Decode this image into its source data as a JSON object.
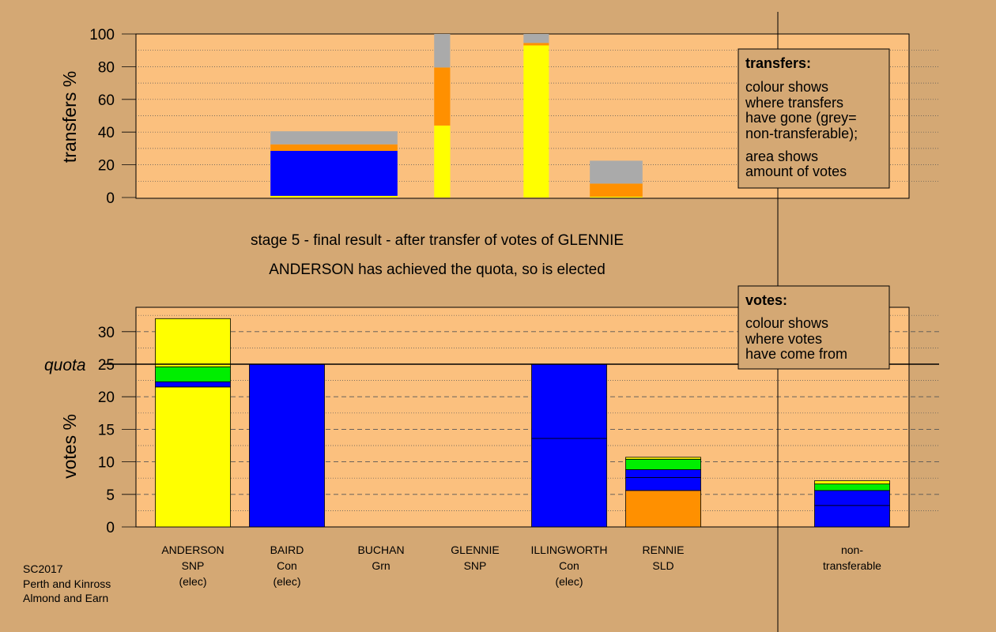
{
  "colors": {
    "page_bg": "#d4a874",
    "plot_bg": "#fbc07e",
    "SNP": "#ffff00",
    "Con": "#0000ff",
    "Grn": "#00ee00",
    "SLD": "#ff9000",
    "non_transferable": "#aaaaaa"
  },
  "stage_text": {
    "line1": "stage 5 - final result - after transfer of votes of GLENNIE",
    "line2": "ANDERSON has achieved the quota, so is elected"
  },
  "legend": {
    "transfers_title": "transfers:",
    "transfers_lines": [
      "colour shows",
      "where transfers",
      "have gone (grey=",
      "non-transferable);"
    ],
    "transfers_lines2": [
      "area shows",
      "amount of votes"
    ],
    "votes_title": "votes:",
    "votes_lines": [
      "colour shows",
      "where votes",
      "have come from"
    ]
  },
  "footer": [
    "SC2017",
    "Perth and Kinross",
    "Almond and Earn"
  ],
  "quota_label": "quota",
  "chart_data": [
    {
      "type": "bar",
      "ylabel": "transfers %",
      "ylim": [
        0,
        100
      ],
      "yticks": [
        0,
        20,
        40,
        60,
        80,
        100
      ],
      "note": "stacked transfer bars; bar width proportional to votes transferred",
      "bars": [
        {
          "center_slot": 1.5,
          "width_slots": 1.35,
          "segments": [
            {
              "party": "SNP",
              "value": 1
            },
            {
              "party": "Con",
              "value": 27.5
            },
            {
              "party": "SLD",
              "value": 4
            },
            {
              "party": "non_transferable",
              "value": 8
            }
          ]
        },
        {
          "center_slot": 2.65,
          "width_slots": 0.17,
          "segments": [
            {
              "party": "SNP",
              "value": 44
            },
            {
              "party": "SLD",
              "value": 35.5
            },
            {
              "party": "non_transferable",
              "value": 20.5
            }
          ]
        },
        {
          "center_slot": 3.65,
          "width_slots": 0.27,
          "segments": [
            {
              "party": "SNP",
              "value": 93
            },
            {
              "party": "SLD",
              "value": 1.5
            },
            {
              "party": "non_transferable",
              "value": 5.5
            }
          ]
        },
        {
          "center_slot": 4.5,
          "width_slots": 0.56,
          "segments": [
            {
              "party": "SNP",
              "value": 0.5
            },
            {
              "party": "SLD",
              "value": 8
            },
            {
              "party": "non_transferable",
              "value": 14
            }
          ]
        }
      ]
    },
    {
      "type": "bar",
      "ylabel": "votes %",
      "ylim": [
        0,
        33.8
      ],
      "yticks": [
        0,
        5,
        10,
        15,
        20,
        25,
        30
      ],
      "quota": 25,
      "candidates": [
        {
          "name": "ANDERSON",
          "party_label": "SNP",
          "status": "(elec)",
          "segments": [
            {
              "party": "SNP",
              "value": 21.5
            },
            {
              "party": "Con",
              "value": 0.8
            },
            {
              "party": "Grn",
              "value": 2.3
            },
            {
              "party": "SNP",
              "value": 7.4
            }
          ]
        },
        {
          "name": "BAIRD",
          "party_label": "Con",
          "status": "(elec)",
          "segments": [
            {
              "party": "Con",
              "value": 25
            }
          ]
        },
        {
          "name": "BUCHAN",
          "party_label": "Grn",
          "status": "",
          "segments": []
        },
        {
          "name": "GLENNIE",
          "party_label": "SNP",
          "status": "",
          "segments": []
        },
        {
          "name": "ILLINGWORTH",
          "party_label": "Con",
          "status": "(elec)",
          "segments": [
            {
              "party": "Con",
              "value": 13.6
            },
            {
              "party": "Con",
              "value": 11.4
            }
          ]
        },
        {
          "name": "RENNIE",
          "party_label": "SLD",
          "status": "",
          "segments": [
            {
              "party": "SLD",
              "value": 5.6
            },
            {
              "party": "Con",
              "value": 2
            },
            {
              "party": "Con",
              "value": 1.2
            },
            {
              "party": "Grn",
              "value": 1.6
            },
            {
              "party": "SNP",
              "value": 0.3
            }
          ]
        }
      ],
      "non_transferable": {
        "label_line1": "non-",
        "label_line2": "transferable",
        "segments": [
          {
            "party": "Con",
            "value": 3.3
          },
          {
            "party": "Con",
            "value": 2.3
          },
          {
            "party": "Grn",
            "value": 1
          },
          {
            "party": "SNP",
            "value": 0.5
          }
        ]
      }
    }
  ]
}
